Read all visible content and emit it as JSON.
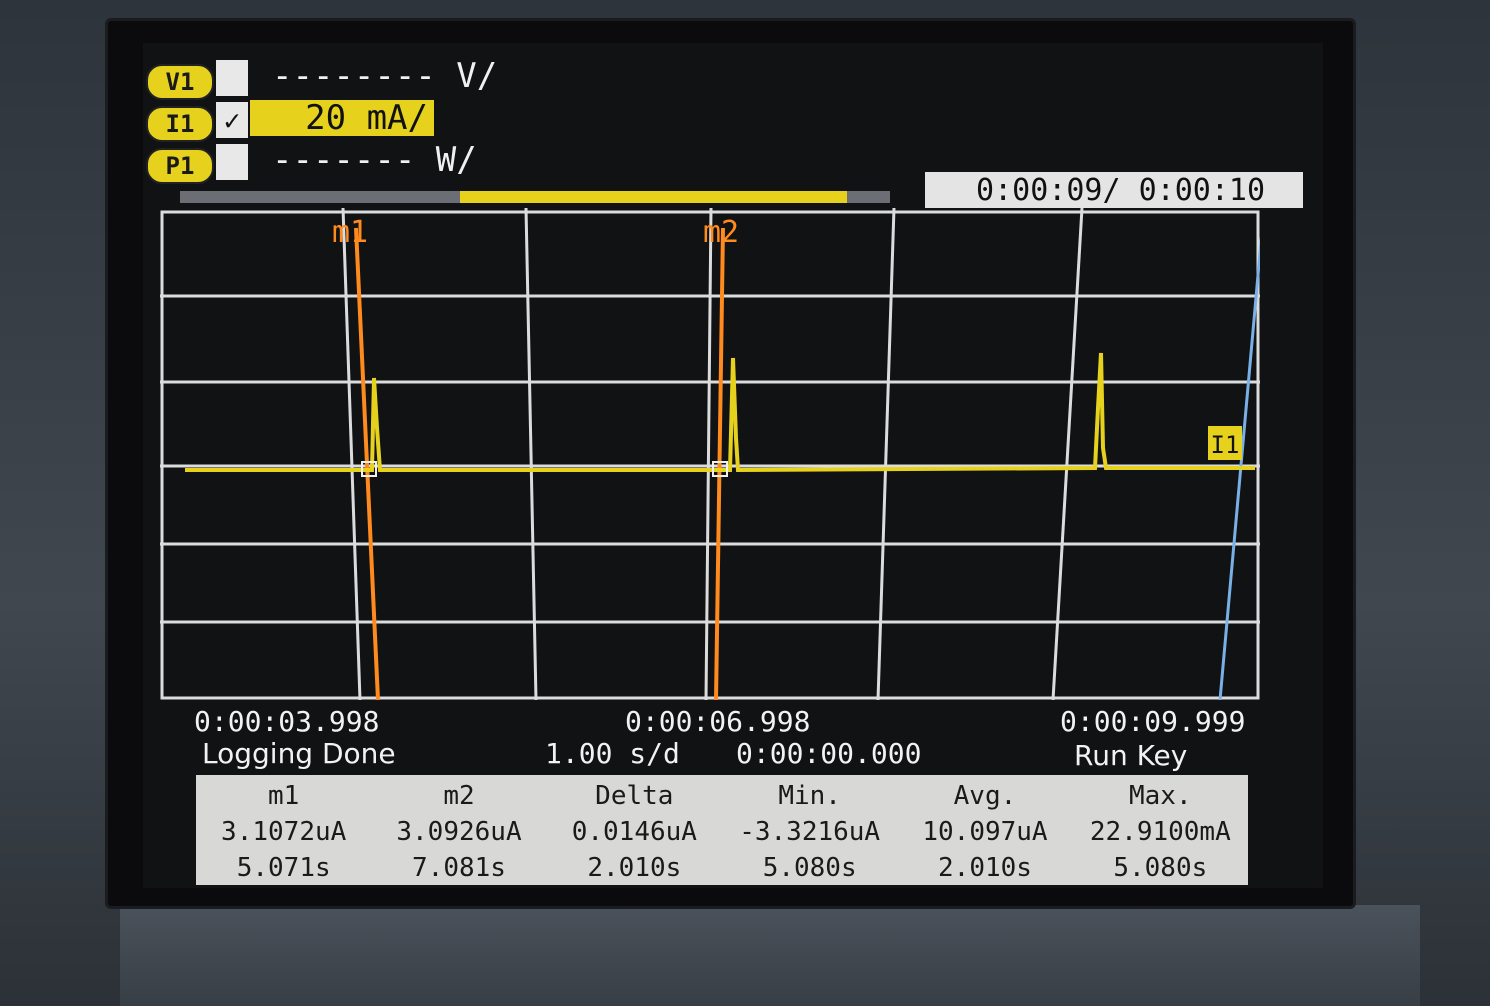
{
  "channels": [
    {
      "badge": "V1",
      "checked": "",
      "scale": "-------- V/",
      "active": false
    },
    {
      "badge": "I1",
      "checked": "✓",
      "scale": "20 mA/",
      "active": true
    },
    {
      "badge": "P1",
      "checked": "",
      "scale": "------- W/",
      "active": false
    }
  ],
  "progress": {
    "fraction": 0.9
  },
  "time_readout": "0:00:09/ 0:00:10",
  "markers": {
    "m1": "m1",
    "m2": "m2"
  },
  "trace_label": "I1",
  "axis": {
    "left_time": "0:00:03.998",
    "center_time": "0:00:06.998",
    "right_time": "0:00:09.999",
    "status": "Logging Done",
    "time_per_div": "1.00 s/d",
    "offset": "0:00:00.000",
    "run_key": "Run Key"
  },
  "stats": {
    "headers": [
      "m1",
      "m2",
      "Delta",
      "Min.",
      "Avg.",
      "Max."
    ],
    "values": [
      "3.1072uA",
      "3.0926uA",
      "0.0146uA",
      "-3.3216uA",
      "10.097uA",
      "22.9100mA"
    ],
    "times": [
      "5.071s",
      "7.081s",
      "2.010s",
      "5.080s",
      "2.010s",
      "5.080s"
    ]
  },
  "colors": {
    "trace": "#e6d21c",
    "marker": "#ff8a1e",
    "grid": "#dcdcdc",
    "cursor": "#7ab0e8"
  }
}
